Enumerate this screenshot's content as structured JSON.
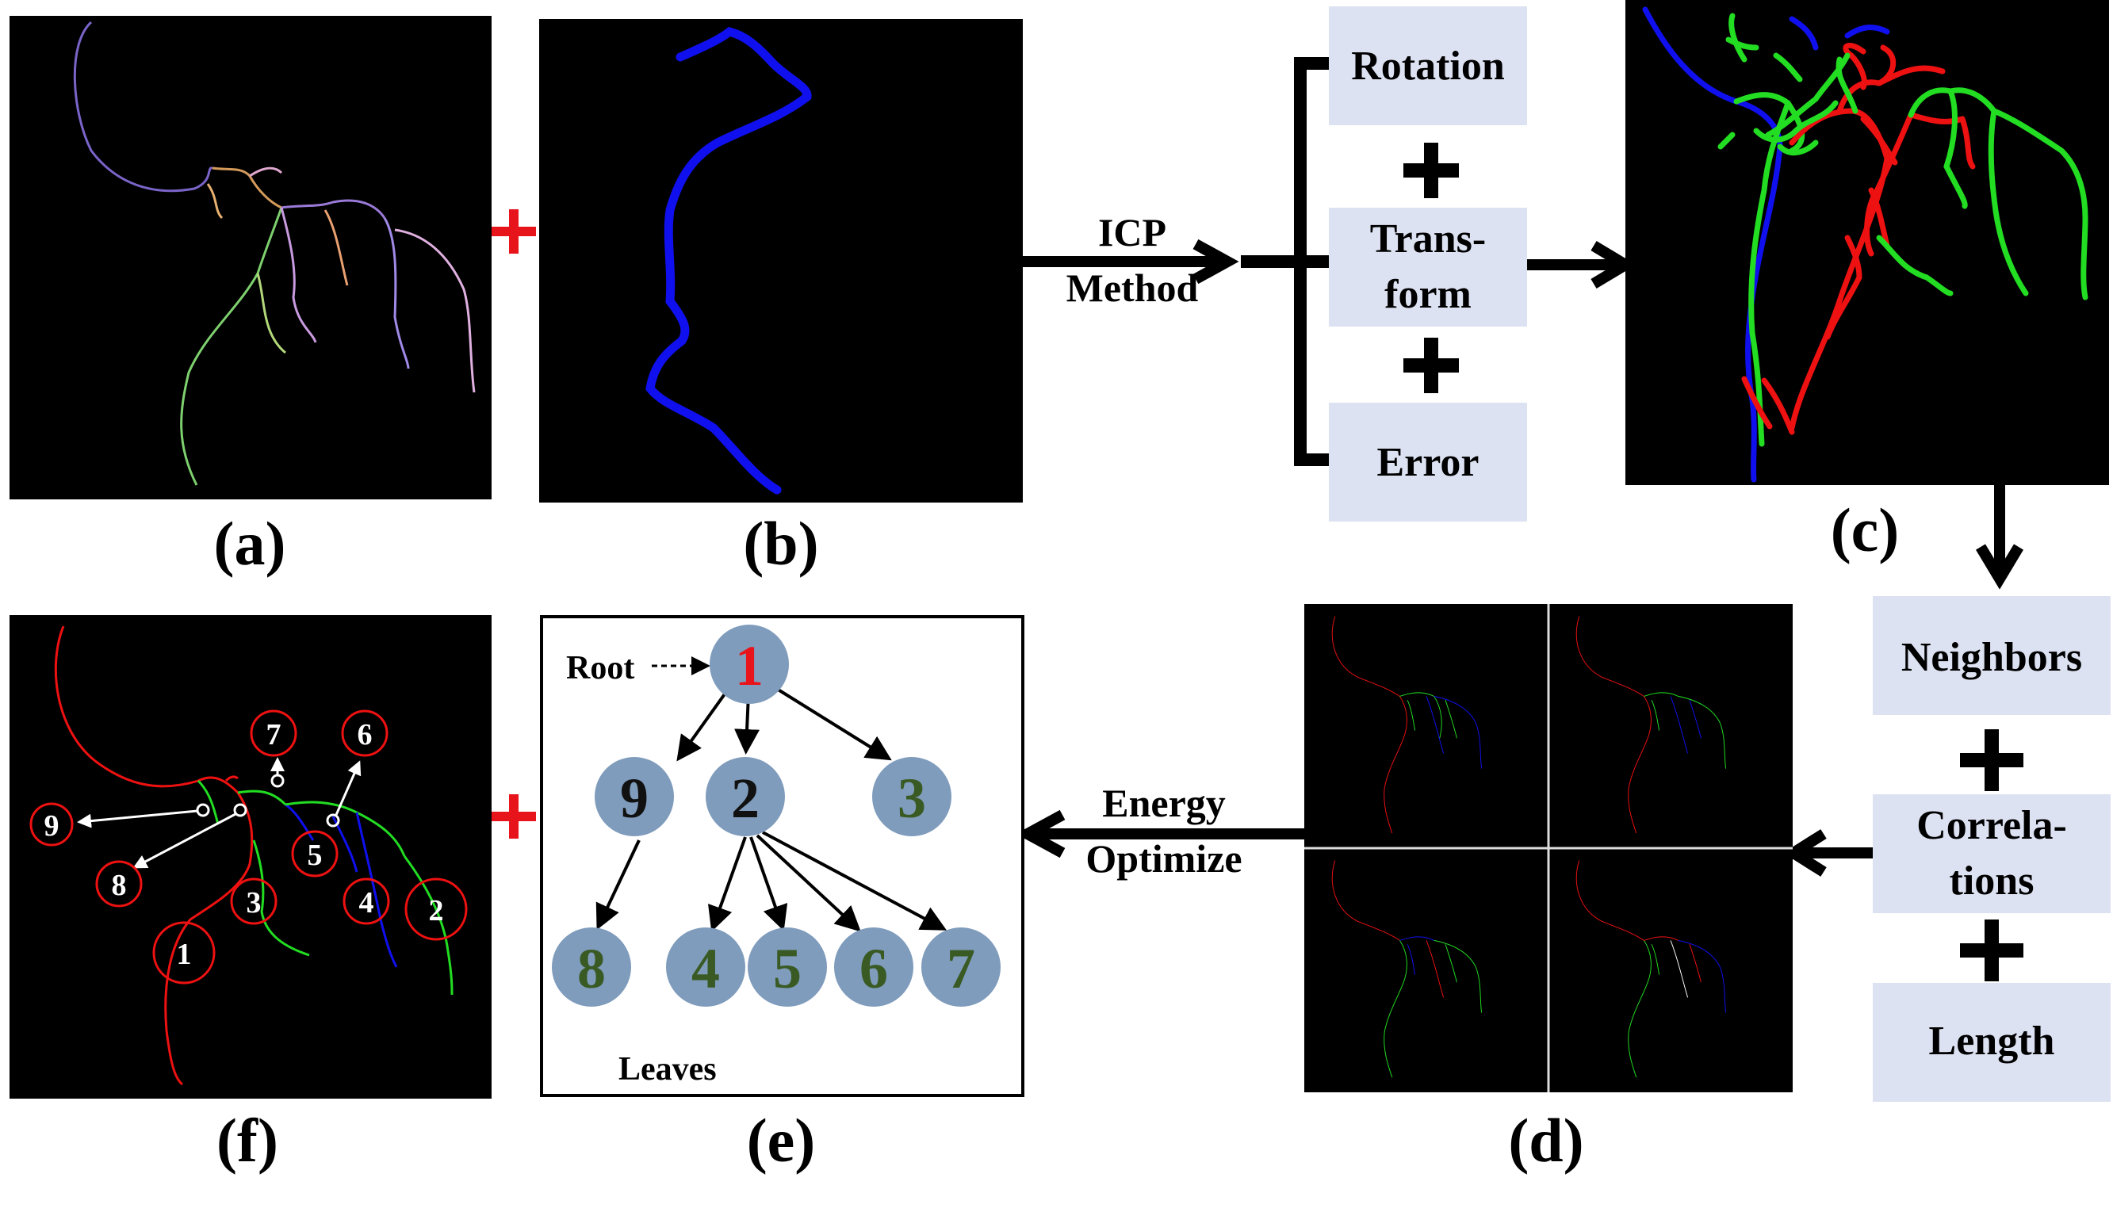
{
  "panels": {
    "a": {
      "label": "(a)"
    },
    "b": {
      "label": "(b)"
    },
    "c": {
      "label": "(c)"
    },
    "d": {
      "label": "(d)"
    },
    "e": {
      "label": "(e)"
    },
    "f": {
      "label": "(f)"
    }
  },
  "icp": {
    "line1": "ICP",
    "line2": "Method"
  },
  "energy": {
    "line1": "Energy",
    "line2": "Optimize"
  },
  "icp_terms": {
    "rotation": "Rotation",
    "transform1": "Trans-",
    "transform2": "form",
    "error": "Error"
  },
  "features": {
    "neighbors": "Neighbors",
    "correlations1": "Correla-",
    "correlations2": "tions",
    "length": "Length"
  },
  "tree": {
    "root_label": "Root",
    "leaves_label": "Leaves",
    "nodes": {
      "n1": "1",
      "n9": "9",
      "n2": "2",
      "n3": "3",
      "n8": "8",
      "n4": "4",
      "n5": "5",
      "n6": "6",
      "n7": "7"
    }
  },
  "markers": {
    "m1": "1",
    "m2": "2",
    "m3": "3",
    "m4": "4",
    "m5": "5",
    "m6": "6",
    "m7": "7",
    "m8": "8",
    "m9": "9"
  },
  "colors": {
    "box_fill": "#dde2f2",
    "node_fill": "#7f9cbc",
    "root_text": "#e8141c",
    "dark_text": "#111111",
    "leaf_text": "#3a5a23",
    "vessel_blue": "#1010ee",
    "vessel_red": "#ee1111",
    "vessel_green": "#22dd22",
    "plus_red": "#e8141c"
  }
}
